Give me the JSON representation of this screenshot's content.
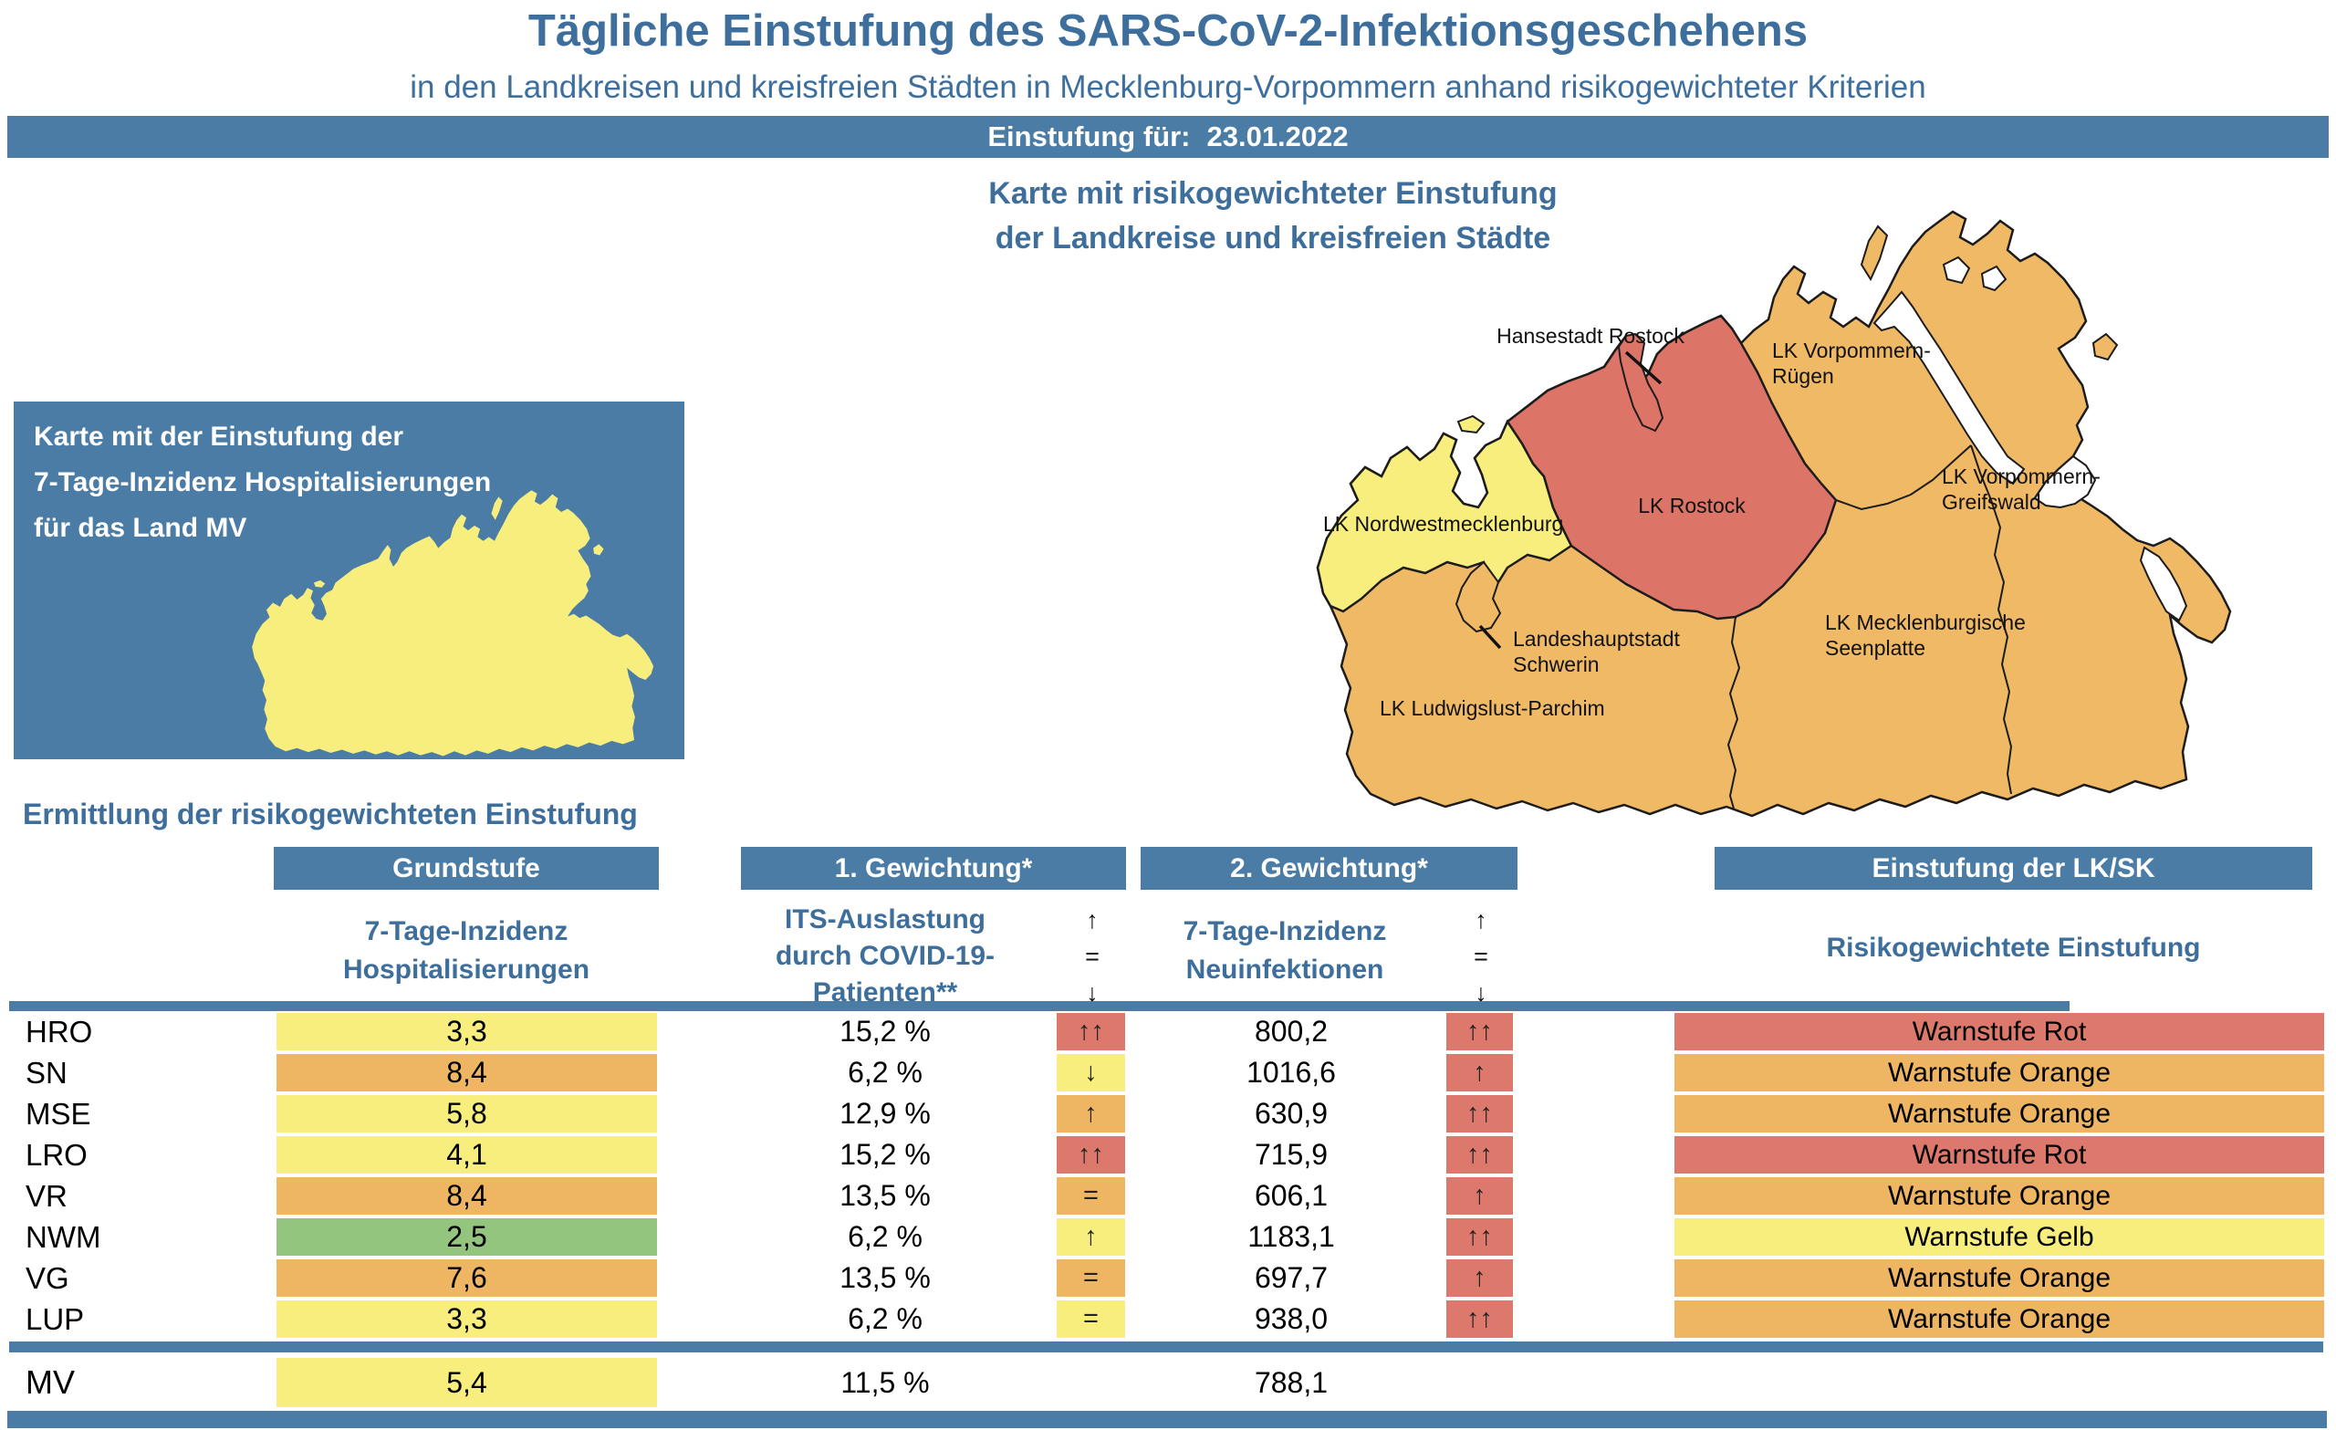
{
  "title": "Tägliche Einstufung des SARS-CoV-2-Infektionsgeschehens",
  "subtitle": "in den Landkreisen und kreisfreien Städten in Mecklenburg-Vorpommern anhand risikogewichteter Kriterien",
  "date_banner": {
    "label": "Einstufung für:",
    "date": "23.01.2022"
  },
  "left_panel": {
    "line1": "Karte mit der Einstufung der",
    "line2": "7-Tage-Inzidenz Hospitalisierungen",
    "line3": "für das Land MV"
  },
  "map": {
    "title_line1": "Karte mit risikogewichteter Einstufung",
    "title_line2": "der Landkreise und kreisfreien Städte",
    "labels": {
      "hansestadt_rostock": "Hansestadt Rostock",
      "vorpommern_ruegen_1": "LK Vorpommern-",
      "vorpommern_ruegen_2": "Rügen",
      "lk_rostock": "LK Rostock",
      "nordwestmecklenburg": "LK Nordwestmecklenburg",
      "vorpommern_greifswald_1": "LK Vorpommern-",
      "vorpommern_greifswald_2": "Greifswald",
      "schwerin_1": "Landeshauptstadt",
      "schwerin_2": "Schwerin",
      "seenplatte_1": "LK Mecklenburgische",
      "seenplatte_2": "Seenplatte",
      "ludwigslust_parchim": "LK Ludwigslust-Parchim"
    }
  },
  "section_heading": "Ermittlung der risikogewichteten Einstufung",
  "table": {
    "col_groups": [
      "Grundstufe",
      "1. Gewichtung*",
      "2. Gewichtung*",
      "Einstufung der LK/SK"
    ],
    "sub_grundstufe_1": "7-Tage-Inzidenz",
    "sub_grundstufe_2": "Hospitalisierungen",
    "sub_its_1": "ITS-Auslastung",
    "sub_its_2": "durch COVID-19-",
    "sub_its_3": "Patienten**",
    "sub_neu_1": "7-Tage-Inzidenz",
    "sub_neu_2": "Neuinfektionen",
    "sub_einstufung": "Risikogewichtete Einstufung",
    "arrow_legend": [
      "↑",
      "=",
      "↓"
    ],
    "rows": [
      {
        "code": "HRO",
        "grundstufe": "3,3",
        "grundstufe_color": "yellow",
        "its": "15,2 %",
        "its_arrow": "↑↑",
        "its_arrow_color": "red",
        "neuinfektionen": "800,2",
        "neu_arrow": "↑↑",
        "neu_arrow_color": "red",
        "einstufung": "Warnstufe Rot",
        "einstufung_color": "red"
      },
      {
        "code": "SN",
        "grundstufe": "8,4",
        "grundstufe_color": "orange",
        "its": "6,2 %",
        "its_arrow": "↓",
        "its_arrow_color": "yellow",
        "neuinfektionen": "1016,6",
        "neu_arrow": "↑",
        "neu_arrow_color": "red",
        "einstufung": "Warnstufe Orange",
        "einstufung_color": "orange"
      },
      {
        "code": "MSE",
        "grundstufe": "5,8",
        "grundstufe_color": "yellow",
        "its": "12,9 %",
        "its_arrow": "↑",
        "its_arrow_color": "orange",
        "neuinfektionen": "630,9",
        "neu_arrow": "↑↑",
        "neu_arrow_color": "red",
        "einstufung": "Warnstufe Orange",
        "einstufung_color": "orange"
      },
      {
        "code": "LRO",
        "grundstufe": "4,1",
        "grundstufe_color": "yellow",
        "its": "15,2 %",
        "its_arrow": "↑↑",
        "its_arrow_color": "red",
        "neuinfektionen": "715,9",
        "neu_arrow": "↑↑",
        "neu_arrow_color": "red",
        "einstufung": "Warnstufe Rot",
        "einstufung_color": "red"
      },
      {
        "code": "VR",
        "grundstufe": "8,4",
        "grundstufe_color": "orange",
        "its": "13,5 %",
        "its_arrow": "=",
        "its_arrow_color": "orange",
        "neuinfektionen": "606,1",
        "neu_arrow": "↑",
        "neu_arrow_color": "red",
        "einstufung": "Warnstufe Orange",
        "einstufung_color": "orange"
      },
      {
        "code": "NWM",
        "grundstufe": "2,5",
        "grundstufe_color": "green",
        "its": "6,2 %",
        "its_arrow": "↑",
        "its_arrow_color": "yellow",
        "neuinfektionen": "1183,1",
        "neu_arrow": "↑↑",
        "neu_arrow_color": "red",
        "einstufung": "Warnstufe Gelb",
        "einstufung_color": "yellow"
      },
      {
        "code": "VG",
        "grundstufe": "7,6",
        "grundstufe_color": "orange",
        "its": "13,5 %",
        "its_arrow": "=",
        "its_arrow_color": "orange",
        "neuinfektionen": "697,7",
        "neu_arrow": "↑",
        "neu_arrow_color": "red",
        "einstufung": "Warnstufe Orange",
        "einstufung_color": "orange"
      },
      {
        "code": "LUP",
        "grundstufe": "3,3",
        "grundstufe_color": "yellow",
        "its": "6,2 %",
        "its_arrow": "=",
        "its_arrow_color": "yellow",
        "neuinfektionen": "938,0",
        "neu_arrow": "↑↑",
        "neu_arrow_color": "red",
        "einstufung": "Warnstufe Orange",
        "einstufung_color": "orange"
      }
    ],
    "summary_row": {
      "code": "MV",
      "grundstufe": "5,4",
      "grundstufe_color": "yellow",
      "its": "11,5 %",
      "neuinfektionen": "788,1"
    }
  },
  "colors": {
    "bar_blue": "#4A7CA6",
    "heading_blue": "#3D6E9C",
    "yellow": "#F8EE7D",
    "orange": "#EEB563",
    "red": "#DD796C",
    "green": "#94C57E",
    "map_orange": "#F0B966",
    "map_yellow": "#F8EE7D",
    "map_red": "#DC7467"
  }
}
